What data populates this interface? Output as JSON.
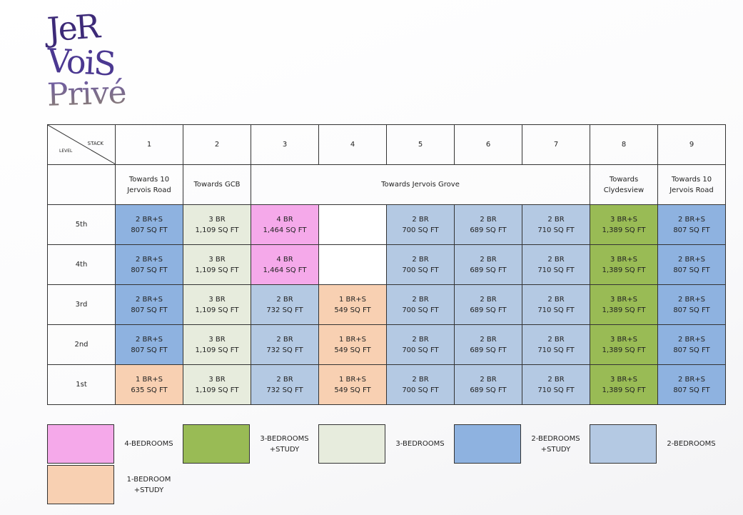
{
  "brand": {
    "line1": "JeR",
    "line2": "VoiS",
    "line3": "Privé"
  },
  "header": {
    "stack_label": "STACK",
    "level_label": "LEVEL"
  },
  "stacks": [
    "1",
    "2",
    "3",
    "4",
    "5",
    "6",
    "7",
    "8",
    "9"
  ],
  "views": [
    {
      "label": "Towards 10\nJervois Road",
      "span": 1
    },
    {
      "label": "Towards GCB",
      "span": 1
    },
    {
      "label": "Towards Jervois Grove",
      "span": 5
    },
    {
      "label": "Towards\nClydesview",
      "span": 1
    },
    {
      "label": "Towards 10\nJervois Road",
      "span": 1
    }
  ],
  "levels": [
    {
      "name": "5th",
      "units": [
        {
          "type": "2brs",
          "label": "2 BR+S",
          "area": "807 SQ FT"
        },
        {
          "type": "3br",
          "label": "3 BR",
          "area": "1,109 SQ FT"
        },
        {
          "type": "4br",
          "label": "4 BR",
          "area": "1,464 SQ FT"
        },
        {
          "type": "empty",
          "label": "",
          "area": ""
        },
        {
          "type": "2br",
          "label": "2 BR",
          "area": "700 SQ FT"
        },
        {
          "type": "2br",
          "label": "2 BR",
          "area": "689 SQ FT"
        },
        {
          "type": "2br",
          "label": "2 BR",
          "area": "710 SQ FT"
        },
        {
          "type": "3brs",
          "label": "3 BR+S",
          "area": "1,389 SQ FT"
        },
        {
          "type": "2brs",
          "label": "2 BR+S",
          "area": "807 SQ FT"
        }
      ]
    },
    {
      "name": "4th",
      "units": [
        {
          "type": "2brs",
          "label": "2 BR+S",
          "area": "807 SQ FT"
        },
        {
          "type": "3br",
          "label": "3 BR",
          "area": "1,109 SQ FT"
        },
        {
          "type": "4br",
          "label": "4 BR",
          "area": "1,464 SQ FT"
        },
        {
          "type": "empty",
          "label": "",
          "area": ""
        },
        {
          "type": "2br",
          "label": "2 BR",
          "area": "700 SQ FT"
        },
        {
          "type": "2br",
          "label": "2 BR",
          "area": "689 SQ FT"
        },
        {
          "type": "2br",
          "label": "2 BR",
          "area": "710 SQ FT"
        },
        {
          "type": "3brs",
          "label": "3 BR+S",
          "area": "1,389 SQ FT"
        },
        {
          "type": "2brs",
          "label": "2 BR+S",
          "area": "807 SQ FT"
        }
      ]
    },
    {
      "name": "3rd",
      "units": [
        {
          "type": "2brs",
          "label": "2 BR+S",
          "area": "807 SQ FT"
        },
        {
          "type": "3br",
          "label": "3 BR",
          "area": "1,109 SQ FT"
        },
        {
          "type": "2br",
          "label": "2 BR",
          "area": "732 SQ FT"
        },
        {
          "type": "1brs",
          "label": "1 BR+S",
          "area": "549 SQ FT"
        },
        {
          "type": "2br",
          "label": "2 BR",
          "area": "700 SQ FT"
        },
        {
          "type": "2br",
          "label": "2 BR",
          "area": "689 SQ FT"
        },
        {
          "type": "2br",
          "label": "2 BR",
          "area": "710 SQ FT"
        },
        {
          "type": "3brs",
          "label": "3 BR+S",
          "area": "1,389 SQ FT"
        },
        {
          "type": "2brs",
          "label": "2 BR+S",
          "area": "807 SQ FT"
        }
      ]
    },
    {
      "name": "2nd",
      "units": [
        {
          "type": "2brs",
          "label": "2 BR+S",
          "area": "807 SQ FT"
        },
        {
          "type": "3br",
          "label": "3 BR",
          "area": "1,109 SQ FT"
        },
        {
          "type": "2br",
          "label": "2 BR",
          "area": "732 SQ FT"
        },
        {
          "type": "1brs",
          "label": "1 BR+S",
          "area": "549 SQ FT"
        },
        {
          "type": "2br",
          "label": "2 BR",
          "area": "700 SQ FT"
        },
        {
          "type": "2br",
          "label": "2 BR",
          "area": "689 SQ FT"
        },
        {
          "type": "2br",
          "label": "2 BR",
          "area": "710 SQ FT"
        },
        {
          "type": "3brs",
          "label": "3 BR+S",
          "area": "1,389 SQ FT"
        },
        {
          "type": "2brs",
          "label": "2 BR+S",
          "area": "807 SQ FT"
        }
      ]
    },
    {
      "name": "1st",
      "units": [
        {
          "type": "1brs",
          "label": "1 BR+S",
          "area": "635 SQ FT"
        },
        {
          "type": "3br",
          "label": "3 BR",
          "area": "1,109 SQ FT"
        },
        {
          "type": "2br",
          "label": "2 BR",
          "area": "732 SQ FT"
        },
        {
          "type": "1brs",
          "label": "1 BR+S",
          "area": "549 SQ FT"
        },
        {
          "type": "2br",
          "label": "2 BR",
          "area": "700 SQ FT"
        },
        {
          "type": "2br",
          "label": "2 BR",
          "area": "689 SQ FT"
        },
        {
          "type": "2br",
          "label": "2 BR",
          "area": "710 SQ FT"
        },
        {
          "type": "3brs",
          "label": "3 BR+S",
          "area": "1,389 SQ FT"
        },
        {
          "type": "2brs",
          "label": "2 BR+S",
          "area": "807 SQ FT"
        }
      ]
    }
  ],
  "legend": [
    {
      "type": "4br",
      "label": "4-BEDROOMS"
    },
    {
      "type": "3brs",
      "label": "3-BEDROOMS\n+STUDY"
    },
    {
      "type": "3br",
      "label": "3-BEDROOMS"
    },
    {
      "type": "2brs",
      "label": "2-BEDROOMS\n+STUDY"
    },
    {
      "type": "2br",
      "label": "2-BEDROOMS"
    },
    {
      "type": "1brs",
      "label": "1-BEDROOM\n+STUDY"
    }
  ],
  "colors": {
    "4br": "#f5a9ea",
    "3brs": "#99bb55",
    "3br": "#e7ecdd",
    "2brs": "#8eb2e0",
    "2br": "#b4c9e3",
    "1brs": "#f8d0b2",
    "brand": "#3d2a78"
  }
}
